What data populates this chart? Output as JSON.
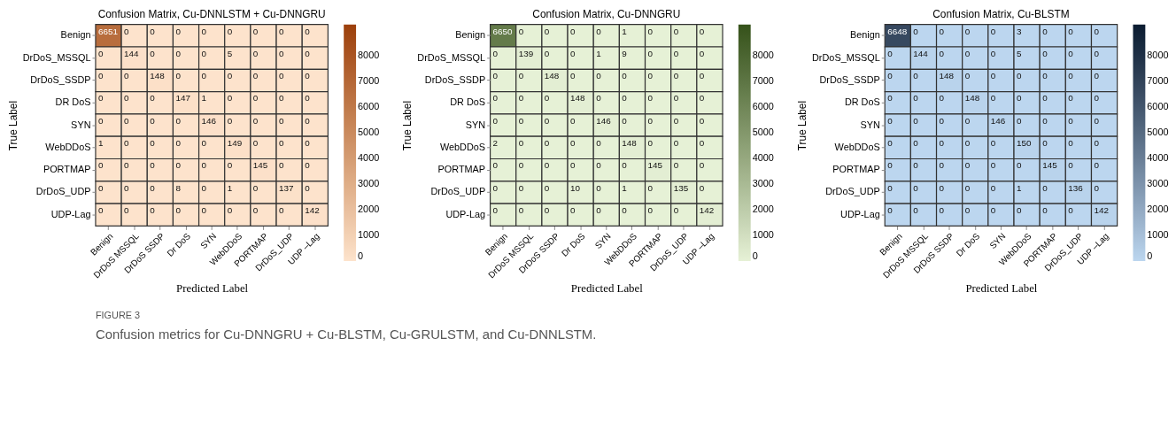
{
  "chart_data": [
    {
      "type": "heatmap",
      "title": "Confusion Matrix, Cu-DNNLSTM + Cu-DNNGRU",
      "xlabel": "Predicted Label",
      "ylabel": "True Label",
      "categories": [
        "Benign",
        "DrDoS MSSQL",
        "DrDoS SSDP",
        "Dr DoS",
        "SYN",
        "WebDDoS",
        "PORTMAP",
        "DrDoS_UDP",
        "UDP –Lag"
      ],
      "y_categories": [
        "Benign",
        "DrDoS_MSSQL",
        "DrDoS_SSDP",
        "DR DoS",
        "SYN",
        "WebDDoS",
        "PORTMAP",
        "DrDoS_UDP",
        "UDP-Lag"
      ],
      "cells": [
        [
          6651,
          0,
          0,
          0,
          0,
          0,
          0,
          0,
          0
        ],
        [
          0,
          144,
          0,
          0,
          0,
          5,
          0,
          0,
          0
        ],
        [
          0,
          0,
          148,
          0,
          0,
          0,
          0,
          0,
          0
        ],
        [
          0,
          0,
          0,
          147,
          1,
          0,
          0,
          0,
          0
        ],
        [
          0,
          0,
          0,
          0,
          146,
          0,
          0,
          0,
          0
        ],
        [
          1,
          0,
          0,
          0,
          0,
          149,
          0,
          0,
          0
        ],
        [
          0,
          0,
          0,
          0,
          0,
          0,
          145,
          0,
          0
        ],
        [
          0,
          0,
          0,
          8,
          0,
          1,
          0,
          137,
          0
        ],
        [
          0,
          0,
          0,
          0,
          0,
          0,
          0,
          0,
          142
        ]
      ],
      "clim": [
        0,
        9200
      ],
      "cticks": [
        0,
        1000,
        2000,
        3000,
        4000,
        5000,
        6000,
        7000,
        8000
      ],
      "colors": [
        "#fde3cc",
        "#9c3f0a"
      ],
      "data_labels": true,
      "annotations": [
        "FIGURE 3",
        "Confusion metrics for Cu-DNNGRU + Cu-BLSTM, Cu-GRULSTM, and Cu-DNNLSTM."
      ]
    },
    {
      "type": "heatmap",
      "title": "Confusion Matrix, Cu-DNNGRU",
      "xlabel": "Predicted Label",
      "ylabel": "True Label",
      "categories": [
        "Benign",
        "DrDoS MSSQL",
        "DrDoS SSDP",
        "Dr DoS",
        "SYN",
        "WebDDoS",
        "PORTMAP",
        "DrDoS_UDP",
        "UDP –Lag"
      ],
      "y_categories": [
        "Benign",
        "DrDoS_MSSQL",
        "DrDoS_SSDP",
        "DR DoS",
        "SYN",
        "WebDDoS",
        "PORTMAP",
        "DrDoS_UDP",
        "UDP-Lag"
      ],
      "cells": [
        [
          6650,
          0,
          0,
          0,
          0,
          1,
          0,
          0,
          0
        ],
        [
          0,
          139,
          0,
          0,
          1,
          9,
          0,
          0,
          0
        ],
        [
          0,
          0,
          148,
          0,
          0,
          0,
          0,
          0,
          0
        ],
        [
          0,
          0,
          0,
          148,
          0,
          0,
          0,
          0,
          0
        ],
        [
          0,
          0,
          0,
          0,
          146,
          0,
          0,
          0,
          0
        ],
        [
          2,
          0,
          0,
          0,
          0,
          148,
          0,
          0,
          0
        ],
        [
          0,
          0,
          0,
          0,
          0,
          0,
          145,
          0,
          0
        ],
        [
          0,
          0,
          0,
          10,
          0,
          1,
          0,
          135,
          0
        ],
        [
          0,
          0,
          0,
          0,
          0,
          0,
          0,
          0,
          142
        ]
      ],
      "clim": [
        0,
        9200
      ],
      "cticks": [
        0,
        1000,
        2000,
        3000,
        4000,
        5000,
        6000,
        7000,
        8000
      ],
      "colors": [
        "#e6f1d6",
        "#35521a"
      ],
      "data_labels": true
    },
    {
      "type": "heatmap",
      "title": "Confusion Matrix, Cu-BLSTM",
      "xlabel": "Predicted Label",
      "ylabel": "True Label",
      "categories": [
        "Benign",
        "DrDoS MSSQL",
        "DrDoS SSDP",
        "Dr DoS",
        "SYN",
        "WebDDoS",
        "PORTMAP",
        "DrDoS_UDP",
        "UDP –Lag"
      ],
      "y_categories": [
        "Benign",
        "DrDoS_MSSQL",
        "DrDoS_SSDP",
        "DR DoS",
        "SYN",
        "WebDDoS",
        "PORTMAP",
        "DrDoS_UDP",
        "UDP-Lag"
      ],
      "cells": [
        [
          6648,
          0,
          0,
          0,
          0,
          3,
          0,
          0,
          0
        ],
        [
          0,
          144,
          0,
          0,
          0,
          5,
          0,
          0,
          0
        ],
        [
          0,
          0,
          148,
          0,
          0,
          0,
          0,
          0,
          0
        ],
        [
          0,
          0,
          0,
          148,
          0,
          0,
          0,
          0,
          0
        ],
        [
          0,
          0,
          0,
          0,
          146,
          0,
          0,
          0,
          0
        ],
        [
          0,
          0,
          0,
          0,
          0,
          150,
          0,
          0,
          0
        ],
        [
          0,
          0,
          0,
          0,
          0,
          0,
          145,
          0,
          0
        ],
        [
          0,
          0,
          0,
          0,
          0,
          1,
          0,
          136,
          0
        ],
        [
          0,
          0,
          0,
          0,
          0,
          0,
          0,
          0,
          142
        ]
      ],
      "clim": [
        0,
        9200
      ],
      "cticks": [
        0,
        1000,
        2000,
        3000,
        4000,
        5000,
        6000,
        7000,
        8000
      ],
      "colors": [
        "#bcd6ef",
        "#0a1c30"
      ],
      "data_labels": true
    }
  ]
}
